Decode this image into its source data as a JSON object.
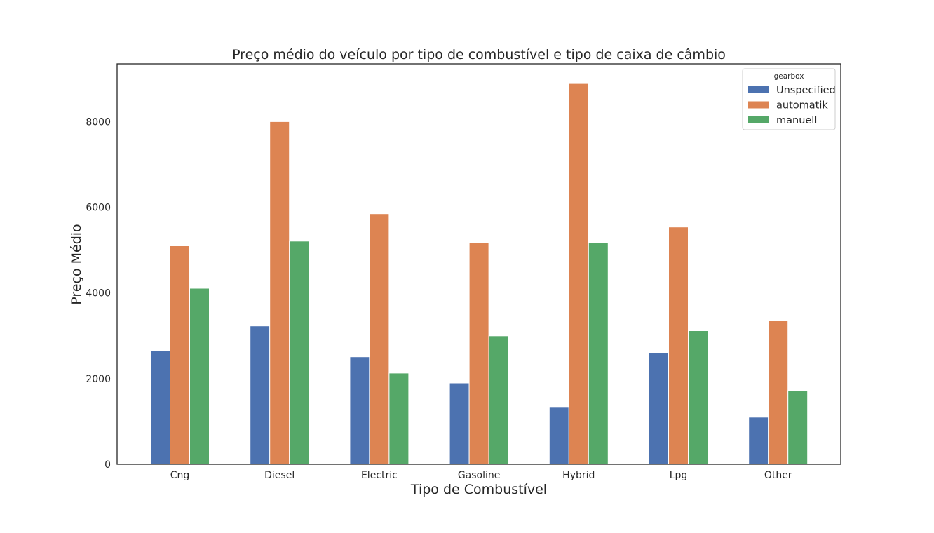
{
  "chart_data": {
    "type": "bar",
    "title": "Preço médio do veículo por tipo de combustível e tipo de caixa de câmbio",
    "xlabel": "Tipo de Combustível",
    "ylabel": "Preço Médio",
    "categories": [
      "Cng",
      "Diesel",
      "Electric",
      "Gasoline",
      "Hybrid",
      "Lpg",
      "Other"
    ],
    "ylim": [
      0,
      9350
    ],
    "yticks": [
      0,
      2000,
      4000,
      6000,
      8000
    ],
    "grid": false,
    "legend": {
      "title": "gearbox",
      "placement": "top-right"
    },
    "series": [
      {
        "name": "Unspecified",
        "color": "#4c72b0",
        "values": [
          2650,
          3230,
          2510,
          1900,
          1330,
          2610,
          1100
        ]
      },
      {
        "name": "automatik",
        "color": "#dd8452",
        "values": [
          5100,
          8000,
          5850,
          5170,
          8890,
          5540,
          3360
        ]
      },
      {
        "name": "manuell",
        "color": "#55a868",
        "values": [
          4110,
          5210,
          2130,
          3000,
          5170,
          3120,
          1720
        ]
      }
    ]
  }
}
